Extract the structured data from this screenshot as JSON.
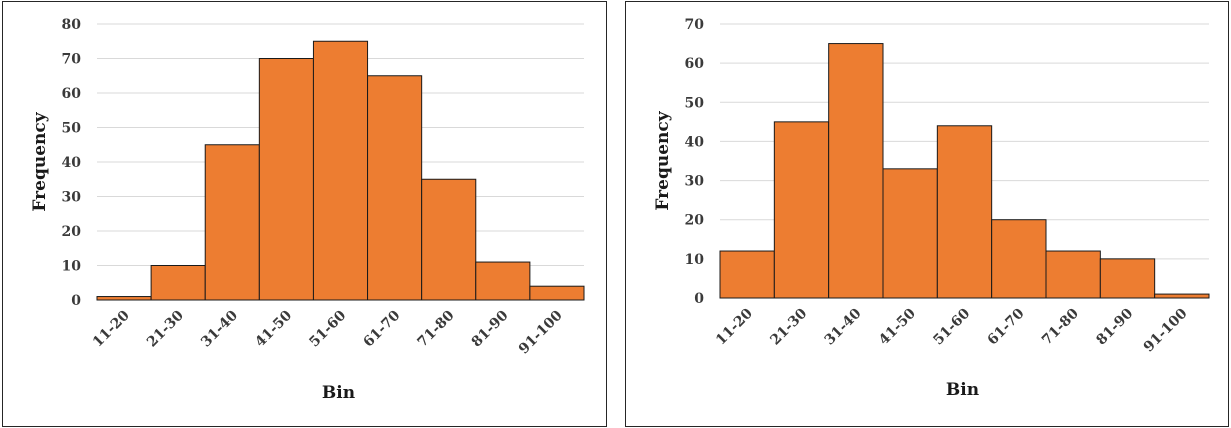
{
  "chart_data": [
    {
      "type": "bar",
      "xlabel": "Bin",
      "ylabel": "Frequency",
      "categories": [
        "11-20",
        "21-30",
        "31-40",
        "41-50",
        "51-60",
        "61-70",
        "71-80",
        "81-90",
        "91-100"
      ],
      "values": [
        1,
        10,
        45,
        70,
        75,
        65,
        35,
        11,
        4
      ],
      "ylim": [
        0,
        80
      ],
      "yticks": [
        0,
        10,
        20,
        30,
        40,
        50,
        60,
        70,
        80
      ],
      "grid": true,
      "bar_color": "#ED7D31"
    },
    {
      "type": "bar",
      "xlabel": "Bin",
      "ylabel": "Frequency",
      "categories": [
        "11-20",
        "21-30",
        "31-40",
        "41-50",
        "51-60",
        "61-70",
        "71-80",
        "81-90",
        "91-100"
      ],
      "values": [
        12,
        45,
        65,
        33,
        44,
        20,
        12,
        10,
        1
      ],
      "ylim": [
        0,
        70
      ],
      "yticks": [
        0,
        10,
        20,
        30,
        40,
        50,
        60,
        70
      ],
      "grid": true,
      "bar_color": "#ED7D31"
    }
  ]
}
